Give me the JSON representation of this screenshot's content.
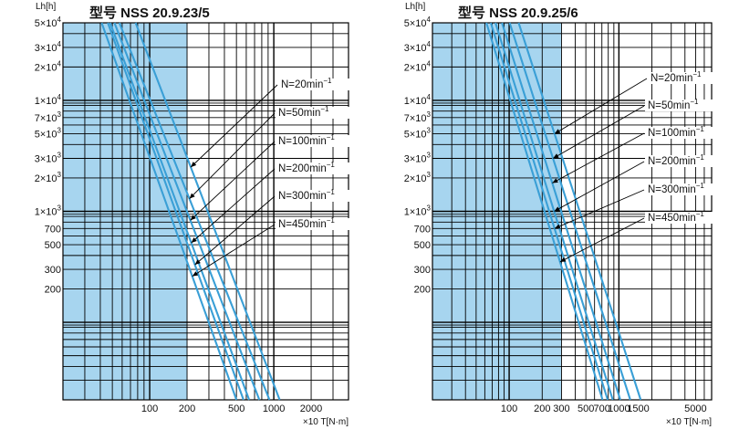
{
  "chart_data": [
    {
      "type": "line",
      "title": "型号 NSS 20.9.23/5",
      "ylabel": "Lh[h]",
      "xlabel": "×10 T[N·m]",
      "x_scale": "log",
      "y_scale": "log",
      "xlim": [
        20,
        4000
      ],
      "ylim": [
        20,
        50000
      ],
      "shaded_band_x": [
        20,
        200
      ],
      "x_ticks": [
        {
          "v": 100,
          "label": "100"
        },
        {
          "v": 200,
          "label": "200"
        },
        {
          "v": 500,
          "label": "500"
        },
        {
          "v": 1000,
          "label": "1000"
        },
        {
          "v": 2000,
          "label": "2000"
        }
      ],
      "y_ticks": [
        {
          "v": 50000,
          "label": "5×10",
          "exp": "4"
        },
        {
          "v": 30000,
          "label": "3×10",
          "exp": "4"
        },
        {
          "v": 20000,
          "label": "2×10",
          "exp": "4"
        },
        {
          "v": 10000,
          "label": "1×10",
          "exp": "4"
        },
        {
          "v": 7000,
          "label": "7×10",
          "exp": "3"
        },
        {
          "v": 5000,
          "label": "5×10",
          "exp": "3"
        },
        {
          "v": 3000,
          "label": "3×10",
          "exp": "3"
        },
        {
          "v": 2000,
          "label": "2×10",
          "exp": "3"
        },
        {
          "v": 1000,
          "label": "1×10",
          "exp": "3"
        },
        {
          "v": 700,
          "label": "700"
        },
        {
          "v": 500,
          "label": "500"
        },
        {
          "v": 300,
          "label": "300"
        },
        {
          "v": 200,
          "label": "200"
        }
      ],
      "series": [
        {
          "name": "N=20min",
          "sup": "−1",
          "x": [
            77,
            1115
          ],
          "y": [
            50000,
            20
          ]
        },
        {
          "name": "N=50min",
          "sup": "−1",
          "x": [
            57,
            923
          ],
          "y": [
            50000,
            20
          ]
        },
        {
          "name": "N=100min",
          "sup": "−1",
          "x": [
            52,
            765
          ],
          "y": [
            50000,
            20
          ]
        },
        {
          "name": "N=200min",
          "sup": "−1",
          "x": [
            48,
            633
          ],
          "y": [
            50000,
            20
          ]
        },
        {
          "name": "N=300min",
          "sup": "−1",
          "x": [
            46,
            570
          ],
          "y": [
            50000,
            20
          ]
        },
        {
          "name": "N=450min",
          "sup": "−1",
          "x": [
            41,
            500
          ],
          "y": [
            50000,
            20
          ]
        }
      ],
      "annotations_lh": [
        2500,
        1300,
        830,
        520,
        330,
        260
      ]
    },
    {
      "type": "line",
      "title": "型号 NSS 20.9.25/6",
      "ylabel": "Lh[h]",
      "xlabel": "×10 T[N·m]",
      "x_scale": "log",
      "y_scale": "log",
      "xlim": [
        20,
        7000
      ],
      "ylim": [
        20,
        50000
      ],
      "shaded_band_x": [
        20,
        300
      ],
      "x_ticks": [
        {
          "v": 100,
          "label": "100"
        },
        {
          "v": 200,
          "label": "200"
        },
        {
          "v": 300,
          "label": "300"
        },
        {
          "v": 500,
          "label": "500"
        },
        {
          "v": 700,
          "label": "700"
        },
        {
          "v": 1000,
          "label": "1000"
        },
        {
          "v": 1500,
          "label": "1500"
        },
        {
          "v": 5000,
          "label": "5000"
        }
      ],
      "y_ticks": [
        {
          "v": 50000,
          "label": "5×10",
          "exp": "4"
        },
        {
          "v": 30000,
          "label": "3×10",
          "exp": "4"
        },
        {
          "v": 20000,
          "label": "2×10",
          "exp": "4"
        },
        {
          "v": 10000,
          "label": "1×10",
          "exp": "4"
        },
        {
          "v": 7000,
          "label": "7×10",
          "exp": "3"
        },
        {
          "v": 5000,
          "label": "5×10",
          "exp": "3"
        },
        {
          "v": 3000,
          "label": "3×10",
          "exp": "3"
        },
        {
          "v": 2000,
          "label": "2×10",
          "exp": "3"
        },
        {
          "v": 1000,
          "label": "1×10",
          "exp": "3"
        },
        {
          "v": 700,
          "label": "700"
        },
        {
          "v": 500,
          "label": "500"
        },
        {
          "v": 300,
          "label": "300"
        },
        {
          "v": 200,
          "label": "200"
        }
      ],
      "series": [
        {
          "name": "N=20min",
          "sup": "−1",
          "x": [
            122,
            1580
          ],
          "y": [
            50000,
            20
          ]
        },
        {
          "name": "N=50min",
          "sup": "−1",
          "x": [
            101,
            1270
          ],
          "y": [
            50000,
            20
          ]
        },
        {
          "name": "N=100min",
          "sup": "−1",
          "x": [
            86,
            1030
          ],
          "y": [
            50000,
            20
          ]
        },
        {
          "name": "N=200min",
          "sup": "−1",
          "x": [
            75,
            880
          ],
          "y": [
            50000,
            20
          ]
        },
        {
          "name": "N=300min",
          "sup": "−1",
          "x": [
            68,
            790
          ],
          "y": [
            50000,
            20
          ]
        },
        {
          "name": "N=450min",
          "sup": "−1",
          "x": [
            62,
            710
          ],
          "y": [
            50000,
            20
          ]
        }
      ],
      "annotations_lh": [
        5000,
        3000,
        1800,
        1000,
        700,
        350
      ]
    }
  ]
}
